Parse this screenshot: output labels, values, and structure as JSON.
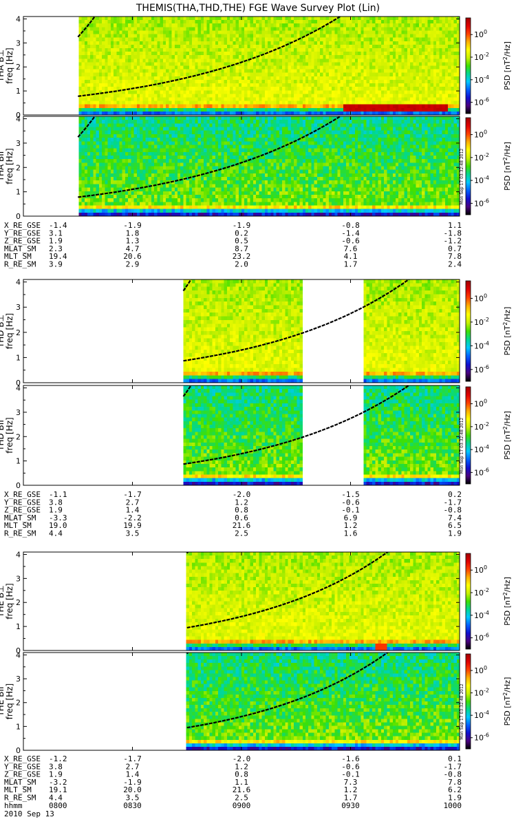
{
  "title": "THEMIS(THA,THD,THE) FGE Wave Survey Plot (Lin)",
  "time_axis": {
    "ticks": [
      "0800",
      "0830",
      "0900",
      "0930",
      "1000"
    ],
    "row_label": "hhmm",
    "date": "2010 Sep 13",
    "range": [
      "0800",
      "1000"
    ]
  },
  "colorbar": {
    "label_prefix": "PSD [nT",
    "label_exp": "2",
    "label_suffix": "/Hz]",
    "ticks": [
      {
        "base": "10",
        "exp": "0",
        "value": 1
      },
      {
        "base": "10",
        "exp": "-2",
        "value": 0.01
      },
      {
        "base": "10",
        "exp": "-4",
        "value": 0.0001
      },
      {
        "base": "10",
        "exp": "-6",
        "value": 1e-06
      }
    ],
    "range": [
      1e-07,
      30
    ],
    "scale": "log",
    "stamp": "Mon Sep 17 03:32:48 2012",
    "colors": [
      "#000000",
      "#4a0080",
      "#1010d0",
      "#0060ff",
      "#00c8ff",
      "#00d890",
      "#40e000",
      "#c8f000",
      "#ffff00",
      "#ffb000",
      "#ff4000",
      "#e00000",
      "#a00000"
    ]
  },
  "freq_axis": {
    "unit_label": "freq [Hz]",
    "ticks": [
      "0",
      "1",
      "2",
      "3",
      "4"
    ],
    "range": [
      0,
      4.1
    ]
  },
  "chart_data": [
    {
      "type": "heatmap",
      "probe": "THA",
      "panels": [
        {
          "name": "THA B⊥",
          "label_base": "THA B",
          "label_sym": "⊥",
          "component": "perp",
          "data_coverage": [
            [
              "0815",
              "1000"
            ]
          ]
        },
        {
          "name": "THA B||",
          "label_base": "THA B",
          "label_sym": "II",
          "component": "par",
          "data_coverage": [
            [
              "0815",
              "1000"
            ]
          ]
        }
      ],
      "ephemeris": {
        "rows": [
          {
            "name": "X_RE_GSE",
            "values": [
              "-1.4",
              "-1.9",
              "-1.9",
              "-0.8",
              "1.1"
            ]
          },
          {
            "name": "Y_RE_GSE",
            "values": [
              "3.1",
              "1.8",
              "0.2",
              "-1.4",
              "-1.8"
            ]
          },
          {
            "name": "Z_RE_GSE",
            "values": [
              "1.9",
              "1.3",
              "0.5",
              "-0.6",
              "-1.2"
            ]
          },
          {
            "name": "MLAT_SM",
            "values": [
              "2.3",
              "4.7",
              "8.7",
              "7.6",
              "0.7"
            ]
          },
          {
            "name": "MLT_SM",
            "values": [
              "19.4",
              "20.6",
              "23.2",
              "4.1",
              "7.8"
            ]
          },
          {
            "name": "R_RE_SM",
            "values": [
              "3.9",
              "2.9",
              "2.0",
              "1.7",
              "2.4"
            ]
          }
        ]
      }
    },
    {
      "type": "heatmap",
      "probe": "THD",
      "panels": [
        {
          "name": "THD B⊥",
          "label_base": "THD B",
          "label_sym": "⊥",
          "component": "perp",
          "data_coverage": [
            [
              "0844",
              "0917"
            ],
            [
              "0934",
              "1000"
            ]
          ]
        },
        {
          "name": "THD B||",
          "label_base": "THD B",
          "label_sym": "II",
          "component": "par",
          "data_coverage": [
            [
              "0844",
              "0917"
            ],
            [
              "0934",
              "1000"
            ]
          ]
        }
      ],
      "ephemeris": {
        "rows": [
          {
            "name": "X_RE_GSE",
            "values": [
              "-1.1",
              "-1.7",
              "-2.0",
              "-1.5",
              "0.2"
            ]
          },
          {
            "name": "Y_RE_GSE",
            "values": [
              "3.8",
              "2.7",
              "1.2",
              "-0.6",
              "-1.7"
            ]
          },
          {
            "name": "Z_RE_GSE",
            "values": [
              "1.9",
              "1.4",
              "0.8",
              "-0.1",
              "-0.8"
            ]
          },
          {
            "name": "MLAT_SM",
            "values": [
              "-3.3",
              "-2.2",
              "0.6",
              "6.9",
              "7.4"
            ]
          },
          {
            "name": "MLT_SM",
            "values": [
              "19.0",
              "19.9",
              "21.6",
              "1.2",
              "6.5"
            ]
          },
          {
            "name": "R_RE_SM",
            "values": [
              "4.4",
              "3.5",
              "2.5",
              "1.6",
              "1.9"
            ]
          }
        ]
      }
    },
    {
      "type": "heatmap",
      "probe": "THE",
      "panels": [
        {
          "name": "THE B⊥",
          "label_base": "THE B",
          "label_sym": "⊥",
          "component": "perp",
          "data_coverage": [
            [
              "0845",
              "1000"
            ]
          ]
        },
        {
          "name": "THE B||",
          "label_base": "THE B",
          "label_sym": "II",
          "component": "par",
          "data_coverage": [
            [
              "0845",
              "1000"
            ]
          ]
        }
      ],
      "ephemeris": {
        "rows": [
          {
            "name": "X_RE_GSE",
            "values": [
              "-1.2",
              "-1.7",
              "-2.0",
              "-1.6",
              "0.1"
            ]
          },
          {
            "name": "Y_RE_GSE",
            "values": [
              "3.8",
              "2.7",
              "1.2",
              "-0.6",
              "-1.7"
            ]
          },
          {
            "name": "Z_RE_GSE",
            "values": [
              "1.9",
              "1.4",
              "0.8",
              "-0.1",
              "-0.8"
            ]
          },
          {
            "name": "MLAT_SM",
            "values": [
              "-3.2",
              "-1.9",
              "1.1",
              "7.3",
              "7.8"
            ]
          },
          {
            "name": "MLT_SM",
            "values": [
              "19.1",
              "20.0",
              "21.6",
              "1.2",
              "6.2"
            ]
          },
          {
            "name": "R_RE_SM",
            "values": [
              "4.4",
              "3.5",
              "2.5",
              "1.7",
              "1.9"
            ]
          }
        ]
      }
    }
  ]
}
